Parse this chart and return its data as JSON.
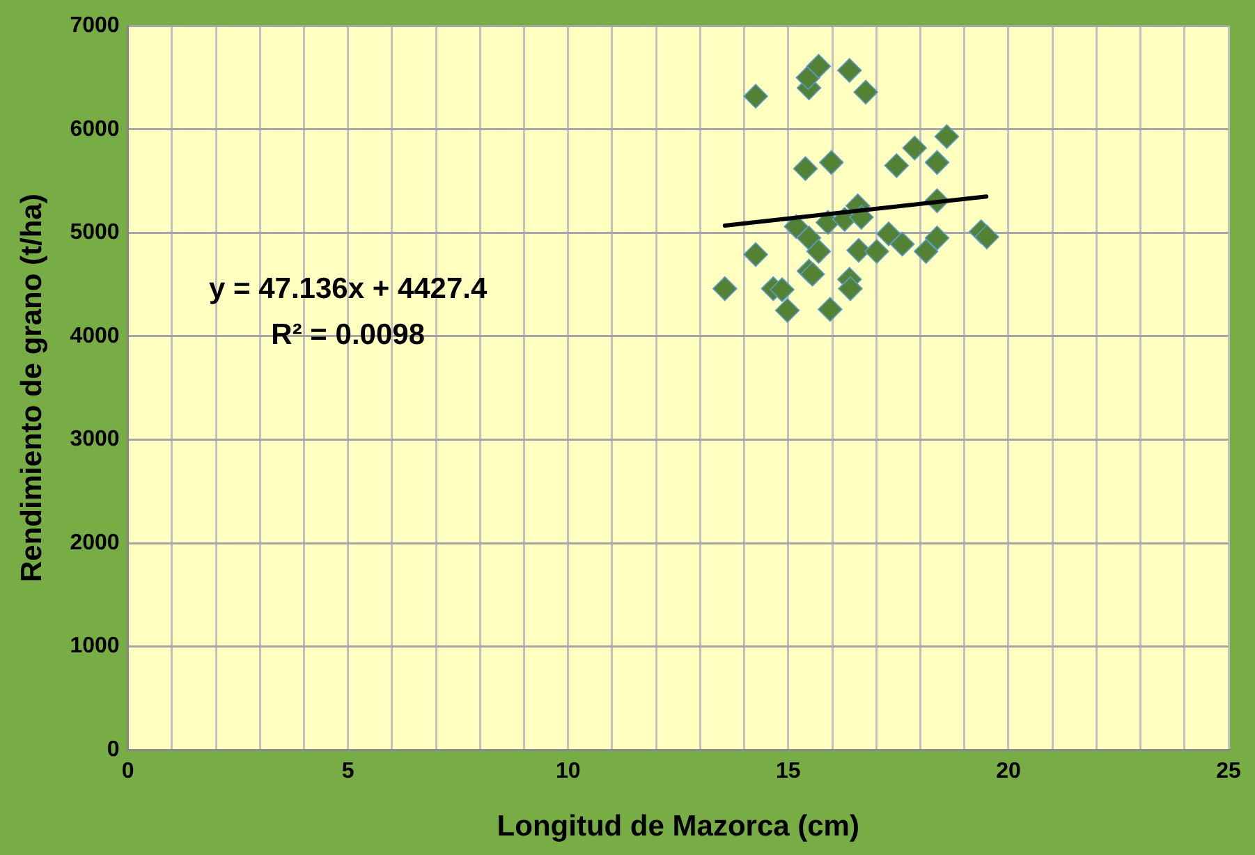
{
  "chart_data": {
    "type": "scatter",
    "xlabel": "Longitud de Mazorca (cm)",
    "ylabel": "Rendimiento de grano (t/ha)",
    "annotations": [
      "y = 47.136x + 4427.4",
      "R² = 0.0098"
    ],
    "series": [
      {
        "color": "#548235",
        "marker": "diamond",
        "x": [
          13.56,
          14.26,
          14.26,
          14.66,
          14.86,
          14.98,
          15.18,
          15.39,
          15.47,
          15.69,
          15.47,
          15.55,
          15.47,
          15.45,
          15.69,
          15.9,
          15.98,
          15.95,
          16.28,
          16.39,
          16.41,
          16.39,
          16.58,
          16.66,
          16.6,
          16.76,
          17.01,
          17.28,
          17.59,
          17.46,
          17.87,
          18.13,
          18.38,
          18.38,
          18.38,
          18.6,
          19.38,
          19.51
        ],
        "values": [
          4460,
          4790,
          6320,
          4460,
          4450,
          4250,
          5060,
          5620,
          4950,
          4820,
          4630,
          4600,
          6400,
          6500,
          6610,
          5100,
          5680,
          4260,
          5130,
          4550,
          4460,
          6570,
          5260,
          5150,
          4830,
          6360,
          4820,
          4990,
          4890,
          5650,
          5820,
          4820,
          4950,
          5310,
          5680,
          5930,
          5010,
          4960
        ]
      },
      {
        "type": "line",
        "color": "#000000",
        "marker": "none",
        "line_style": "solid",
        "x": [
          13.56,
          19.5
        ],
        "values": [
          5070,
          5350
        ]
      }
    ],
    "xlim": [
      0,
      25
    ],
    "xticks": [
      0,
      {
        "value": 1,
        "label": null
      },
      {
        "value": 2,
        "label": null
      },
      {
        "value": 3,
        "label": null
      },
      {
        "value": 4,
        "label": null
      },
      5,
      {
        "value": 6,
        "label": null
      },
      {
        "value": 7,
        "label": null
      },
      {
        "value": 8,
        "label": null
      },
      {
        "value": 9,
        "label": null
      },
      10,
      {
        "value": 11,
        "label": null
      },
      {
        "value": 12,
        "label": null
      },
      {
        "value": 13,
        "label": null
      },
      {
        "value": 14,
        "label": null
      },
      15,
      {
        "value": 16,
        "label": null
      },
      {
        "value": 17,
        "label": null
      },
      {
        "value": 18,
        "label": null
      },
      {
        "value": 19,
        "label": null
      },
      20,
      {
        "value": 21,
        "label": null
      },
      {
        "value": 22,
        "label": null
      },
      {
        "value": 23,
        "label": null
      },
      {
        "value": 24,
        "label": null
      },
      25
    ],
    "ylim": [
      0,
      7000
    ],
    "yticks": [
      0,
      1000,
      2000,
      3000,
      4000,
      5000,
      6000,
      7000
    ],
    "grid": true,
    "legend": false
  }
}
